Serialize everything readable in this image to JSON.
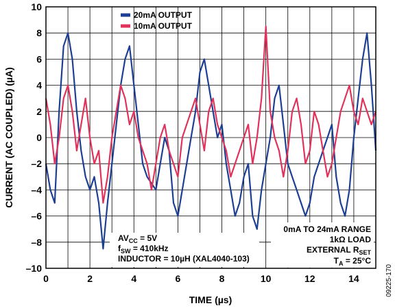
{
  "chart_data": {
    "type": "line",
    "title": "",
    "xlabel": "TIME (µs)",
    "ylabel": "CURRENT (AC COUPLED) (µA)",
    "xlim": [
      0,
      15
    ],
    "ylim": [
      -10,
      10
    ],
    "x_ticks": [
      0,
      2,
      4,
      6,
      8,
      10,
      12,
      14
    ],
    "y_ticks": [
      10,
      8,
      6,
      4,
      2,
      0,
      -2,
      -4,
      -6,
      -8,
      -10
    ],
    "y_tick_labels": [
      "10",
      "8",
      "6",
      "4",
      "2",
      "0",
      "–2",
      "–4",
      "–6",
      "–8",
      "–10"
    ],
    "grid": true,
    "legend_position": "top-center",
    "series": [
      {
        "name": "20mA OUTPUT",
        "color": "#1c3f94",
        "x": [
          0,
          0.2,
          0.4,
          0.6,
          0.8,
          1,
          1.2,
          1.4,
          1.6,
          1.8,
          2,
          2.2,
          2.4,
          2.6,
          2.8,
          3,
          3.2,
          3.4,
          3.6,
          3.8,
          4,
          4.2,
          4.4,
          4.6,
          4.8,
          5,
          5.2,
          5.4,
          5.6,
          5.8,
          6,
          6.2,
          6.4,
          6.6,
          6.8,
          7,
          7.2,
          7.4,
          7.6,
          7.8,
          8,
          8.2,
          8.4,
          8.6,
          8.8,
          9,
          9.2,
          9.4,
          9.6,
          9.8,
          10,
          10.2,
          10.4,
          10.6,
          10.8,
          11,
          11.2,
          11.4,
          11.6,
          11.8,
          12,
          12.2,
          12.4,
          12.6,
          12.8,
          13,
          13.2,
          13.4,
          13.6,
          13.8,
          14,
          14.2,
          14.4,
          14.6,
          14.8,
          15
        ],
        "y": [
          -2,
          -4,
          -5,
          2,
          7,
          8,
          6,
          2,
          -1,
          -3,
          -4,
          -3,
          -5,
          -8.5,
          -5,
          -2,
          1,
          4,
          6,
          7,
          4,
          1,
          -2,
          -3,
          -3.5,
          -4,
          -2,
          0,
          -1,
          -5,
          -6,
          -4,
          -2,
          0,
          2,
          5,
          6,
          4,
          2,
          0,
          1,
          -2,
          -4,
          -6,
          -5,
          -3,
          -2,
          -6,
          -7,
          -4,
          -2,
          0,
          3,
          4,
          1,
          -2,
          -3,
          -4,
          -5,
          -6,
          -5,
          -3,
          -2,
          -1,
          0,
          1,
          -3,
          -5,
          -6,
          -4,
          0,
          3,
          6,
          8,
          4,
          -1
        ]
      },
      {
        "name": "10mA OUTPUT",
        "color": "#e0325a",
        "x": [
          0,
          0.2,
          0.4,
          0.6,
          0.8,
          1,
          1.2,
          1.4,
          1.6,
          1.8,
          2,
          2.2,
          2.4,
          2.6,
          2.8,
          3,
          3.2,
          3.4,
          3.6,
          3.8,
          4,
          4.2,
          4.4,
          4.6,
          4.8,
          5,
          5.2,
          5.4,
          5.6,
          5.8,
          6,
          6.2,
          6.4,
          6.6,
          6.8,
          7,
          7.2,
          7.4,
          7.6,
          7.8,
          8,
          8.2,
          8.4,
          8.6,
          8.8,
          9,
          9.2,
          9.4,
          9.6,
          9.8,
          10,
          10.2,
          10.4,
          10.6,
          10.8,
          11,
          11.2,
          11.4,
          11.6,
          11.8,
          12,
          12.2,
          12.4,
          12.6,
          12.8,
          13,
          13.2,
          13.4,
          13.6,
          13.8,
          14,
          14.2,
          14.4,
          14.6,
          14.8,
          15
        ],
        "y": [
          3,
          1,
          -2,
          0,
          3,
          4,
          2,
          -1,
          1,
          3,
          0,
          -2,
          -1,
          -5,
          -3,
          0,
          2,
          4,
          3,
          1,
          2,
          0,
          -1,
          -2,
          -4,
          -2,
          0,
          1,
          -1,
          -2,
          -3,
          0,
          1,
          2,
          3,
          1,
          -1,
          2,
          3,
          1,
          0,
          -1,
          -3,
          -2,
          -1,
          0,
          1,
          -2,
          0,
          3,
          8.5,
          2,
          0,
          -1,
          -3,
          -1,
          2,
          3,
          1,
          -2,
          -1,
          2,
          1,
          -1,
          -3,
          -2,
          0,
          2,
          3,
          4,
          2,
          1,
          3,
          2,
          1,
          2
        ]
      }
    ],
    "annotations": {
      "left": {
        "line1": "AV",
        "line1_sub": "CC",
        "line1_rest": " = 5V",
        "line2": "f",
        "line2_sub": "SW",
        "line2_rest": " = 410kHz",
        "line3": "INDUCTOR = 10µH (XAL4040-103)"
      },
      "right": {
        "line1": "0mA TO 24mA RANGE",
        "line2": "1kΩ LOAD",
        "line3": "EXTERNAL R",
        "line3_sub": "SET",
        "line4": "T",
        "line4_sub": "A",
        "line4_rest": " = 25°C"
      }
    },
    "figure_id": "09225-170"
  }
}
